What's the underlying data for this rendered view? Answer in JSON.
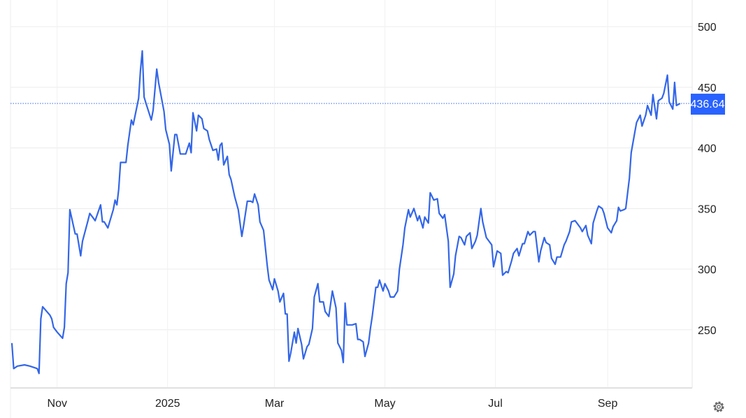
{
  "chart_data": {
    "type": "line",
    "title": "",
    "xlabel": "",
    "ylabel": "",
    "ylim": [
      202,
      522
    ],
    "xlim": [
      "2024-10-07",
      "2025-10-16"
    ],
    "grid": true,
    "y_axis_position": "right",
    "y_ticks": [
      250,
      300,
      350,
      400,
      450,
      500
    ],
    "x_ticks": [
      {
        "date": "2024-11-01",
        "label": "Nov"
      },
      {
        "date": "2025-01-01",
        "label": "2025"
      },
      {
        "date": "2025-03-01",
        "label": "Mar"
      },
      {
        "date": "2025-05-01",
        "label": "May"
      },
      {
        "date": "2025-07-01",
        "label": "Jul"
      },
      {
        "date": "2025-09-01",
        "label": "Sep"
      }
    ],
    "last_price": 436.64,
    "last_price_label": "436.64",
    "colors": {
      "line": "#3366e8",
      "price_label_bg": "#2962ff",
      "grid": "#ececec"
    },
    "series": [
      {
        "points": [
          [
            "2024-10-07",
            239
          ],
          [
            "2024-10-08",
            218
          ],
          [
            "2024-10-10",
            220
          ],
          [
            "2024-10-14",
            221
          ],
          [
            "2024-10-17",
            220
          ],
          [
            "2024-10-21",
            218
          ],
          [
            "2024-10-22",
            214
          ],
          [
            "2024-10-23",
            259
          ],
          [
            "2024-10-24",
            269
          ],
          [
            "2024-10-28",
            262
          ],
          [
            "2024-10-29",
            259
          ],
          [
            "2024-10-30",
            252
          ],
          [
            "2024-11-01",
            248
          ],
          [
            "2024-11-04",
            243
          ],
          [
            "2024-11-05",
            252
          ],
          [
            "2024-11-06",
            288
          ],
          [
            "2024-11-07",
            297
          ],
          [
            "2024-11-08",
            349
          ],
          [
            "2024-11-11",
            329
          ],
          [
            "2024-11-12",
            329
          ],
          [
            "2024-11-14",
            311
          ],
          [
            "2024-11-15",
            323
          ],
          [
            "2024-11-18",
            340
          ],
          [
            "2024-11-19",
            346
          ],
          [
            "2024-11-21",
            342
          ],
          [
            "2024-11-22",
            340
          ],
          [
            "2024-11-25",
            353
          ],
          [
            "2024-11-26",
            339
          ],
          [
            "2024-11-27",
            339
          ],
          [
            "2024-11-29",
            334
          ],
          [
            "2024-12-02",
            349
          ],
          [
            "2024-12-03",
            357
          ],
          [
            "2024-12-04",
            353
          ],
          [
            "2024-12-05",
            366
          ],
          [
            "2024-12-06",
            388
          ],
          [
            "2024-12-09",
            388
          ],
          [
            "2024-12-10",
            402
          ],
          [
            "2024-12-12",
            423
          ],
          [
            "2024-12-13",
            419
          ],
          [
            "2024-12-16",
            441
          ],
          [
            "2024-12-17",
            464
          ],
          [
            "2024-12-18",
            480
          ],
          [
            "2024-12-19",
            442
          ],
          [
            "2024-12-20",
            437
          ],
          [
            "2024-12-23",
            423
          ],
          [
            "2024-12-24",
            431
          ],
          [
            "2024-12-26",
            465
          ],
          [
            "2024-12-27",
            454
          ],
          [
            "2024-12-30",
            430
          ],
          [
            "2024-12-31",
            415
          ],
          [
            "2025-01-02",
            403
          ],
          [
            "2025-01-03",
            381
          ],
          [
            "2025-01-05",
            411
          ],
          [
            "2025-01-06",
            411
          ],
          [
            "2025-01-08",
            395
          ],
          [
            "2025-01-10",
            395
          ],
          [
            "2025-01-11",
            395
          ],
          [
            "2025-01-13",
            404
          ],
          [
            "2025-01-14",
            396
          ],
          [
            "2025-01-15",
            429
          ],
          [
            "2025-01-17",
            414
          ],
          [
            "2025-01-18",
            427
          ],
          [
            "2025-01-20",
            424
          ],
          [
            "2025-01-21",
            416
          ],
          [
            "2025-01-23",
            414
          ],
          [
            "2025-01-24",
            407
          ],
          [
            "2025-01-26",
            398
          ],
          [
            "2025-01-28",
            399
          ],
          [
            "2025-01-29",
            390
          ],
          [
            "2025-01-30",
            402
          ],
          [
            "2025-01-31",
            404
          ],
          [
            "2025-02-01",
            386
          ],
          [
            "2025-02-03",
            393
          ],
          [
            "2025-02-04",
            378
          ],
          [
            "2025-02-05",
            374
          ],
          [
            "2025-02-07",
            360
          ],
          [
            "2025-02-09",
            349
          ],
          [
            "2025-02-11",
            327
          ],
          [
            "2025-02-12",
            336
          ],
          [
            "2025-02-14",
            356
          ],
          [
            "2025-02-16",
            356
          ],
          [
            "2025-02-17",
            355
          ],
          [
            "2025-02-18",
            362
          ],
          [
            "2025-02-20",
            353
          ],
          [
            "2025-02-21",
            339
          ],
          [
            "2025-02-23",
            332
          ],
          [
            "2025-02-25",
            303
          ],
          [
            "2025-02-26",
            291
          ],
          [
            "2025-02-28",
            283
          ],
          [
            "2025-03-01",
            292
          ],
          [
            "2025-03-03",
            282
          ],
          [
            "2025-03-04",
            273
          ],
          [
            "2025-03-06",
            280
          ],
          [
            "2025-03-07",
            263
          ],
          [
            "2025-03-08",
            263
          ],
          [
            "2025-03-09",
            224
          ],
          [
            "2025-03-10",
            231
          ],
          [
            "2025-03-12",
            248
          ],
          [
            "2025-03-13",
            239
          ],
          [
            "2025-03-14",
            251
          ],
          [
            "2025-03-16",
            238
          ],
          [
            "2025-03-17",
            226
          ],
          [
            "2025-03-19",
            236
          ],
          [
            "2025-03-20",
            238
          ],
          [
            "2025-03-22",
            251
          ],
          [
            "2025-03-23",
            277
          ],
          [
            "2025-03-25",
            288
          ],
          [
            "2025-03-26",
            273
          ],
          [
            "2025-03-28",
            273
          ],
          [
            "2025-03-29",
            265
          ],
          [
            "2025-03-31",
            261
          ],
          [
            "2025-04-01",
            271
          ],
          [
            "2025-04-02",
            282
          ],
          [
            "2025-04-04",
            268
          ],
          [
            "2025-04-05",
            239
          ],
          [
            "2025-04-07",
            233
          ],
          [
            "2025-04-08",
            223
          ],
          [
            "2025-04-09",
            272
          ],
          [
            "2025-04-10",
            254
          ],
          [
            "2025-04-12",
            254
          ],
          [
            "2025-04-13",
            254
          ],
          [
            "2025-04-15",
            255
          ],
          [
            "2025-04-16",
            242
          ],
          [
            "2025-04-17",
            242
          ],
          [
            "2025-04-19",
            240
          ],
          [
            "2025-04-20",
            228
          ],
          [
            "2025-04-22",
            239
          ],
          [
            "2025-04-23",
            251
          ],
          [
            "2025-04-24",
            261
          ],
          [
            "2025-04-26",
            285
          ],
          [
            "2025-04-27",
            285
          ],
          [
            "2025-04-28",
            291
          ],
          [
            "2025-04-30",
            282
          ],
          [
            "2025-05-01",
            288
          ],
          [
            "2025-05-03",
            282
          ],
          [
            "2025-05-04",
            277
          ],
          [
            "2025-05-06",
            277
          ],
          [
            "2025-05-08",
            282
          ],
          [
            "2025-05-09",
            300
          ],
          [
            "2025-05-11",
            320
          ],
          [
            "2025-05-12",
            334
          ],
          [
            "2025-05-14",
            349
          ],
          [
            "2025-05-15",
            343
          ],
          [
            "2025-05-17",
            350
          ],
          [
            "2025-05-19",
            340
          ],
          [
            "2025-05-20",
            344
          ],
          [
            "2025-05-22",
            334
          ],
          [
            "2025-05-23",
            343
          ],
          [
            "2025-05-25",
            338
          ],
          [
            "2025-05-26",
            363
          ],
          [
            "2025-05-28",
            357
          ],
          [
            "2025-05-30",
            358
          ],
          [
            "2025-05-31",
            346
          ],
          [
            "2025-06-02",
            342
          ],
          [
            "2025-06-03",
            345
          ],
          [
            "2025-06-05",
            323
          ],
          [
            "2025-06-06",
            285
          ],
          [
            "2025-06-08",
            296
          ],
          [
            "2025-06-09",
            311
          ],
          [
            "2025-06-11",
            327
          ],
          [
            "2025-06-12",
            326
          ],
          [
            "2025-06-14",
            320
          ],
          [
            "2025-06-15",
            327
          ],
          [
            "2025-06-17",
            330
          ],
          [
            "2025-06-18",
            317
          ],
          [
            "2025-06-20",
            323
          ],
          [
            "2025-06-21",
            328
          ],
          [
            "2025-06-23",
            350
          ],
          [
            "2025-06-24",
            339
          ],
          [
            "2025-06-26",
            326
          ],
          [
            "2025-06-27",
            324
          ],
          [
            "2025-06-29",
            320
          ],
          [
            "2025-06-30",
            302
          ],
          [
            "2025-07-02",
            315
          ],
          [
            "2025-07-04",
            313
          ],
          [
            "2025-07-05",
            295
          ],
          [
            "2025-07-07",
            298
          ],
          [
            "2025-07-08",
            297
          ],
          [
            "2025-07-10",
            307
          ],
          [
            "2025-07-11",
            313
          ],
          [
            "2025-07-13",
            317
          ],
          [
            "2025-07-14",
            311
          ],
          [
            "2025-07-16",
            321
          ],
          [
            "2025-07-17",
            321
          ],
          [
            "2025-07-19",
            331
          ],
          [
            "2025-07-20",
            328
          ],
          [
            "2025-07-22",
            331
          ],
          [
            "2025-07-23",
            331
          ],
          [
            "2025-07-25",
            306
          ],
          [
            "2025-07-26",
            315
          ],
          [
            "2025-07-28",
            326
          ],
          [
            "2025-07-29",
            322
          ],
          [
            "2025-07-31",
            320
          ],
          [
            "2025-08-01",
            309
          ],
          [
            "2025-08-03",
            304
          ],
          [
            "2025-08-04",
            310
          ],
          [
            "2025-08-06",
            310
          ],
          [
            "2025-08-08",
            320
          ],
          [
            "2025-08-09",
            323
          ],
          [
            "2025-08-11",
            331
          ],
          [
            "2025-08-12",
            339
          ],
          [
            "2025-08-14",
            340
          ],
          [
            "2025-08-15",
            338
          ],
          [
            "2025-08-17",
            334
          ],
          [
            "2025-08-18",
            331
          ],
          [
            "2025-08-20",
            336
          ],
          [
            "2025-08-21",
            328
          ],
          [
            "2025-08-23",
            321
          ],
          [
            "2025-08-24",
            338
          ],
          [
            "2025-08-26",
            348
          ],
          [
            "2025-08-27",
            352
          ],
          [
            "2025-08-29",
            350
          ],
          [
            "2025-08-30",
            346
          ],
          [
            "2025-09-01",
            334
          ],
          [
            "2025-09-03",
            330
          ],
          [
            "2025-09-04",
            335
          ],
          [
            "2025-09-06",
            340
          ],
          [
            "2025-09-07",
            351
          ],
          [
            "2025-09-08",
            348
          ],
          [
            "2025-09-10",
            349
          ],
          [
            "2025-09-11",
            350
          ],
          [
            "2025-09-13",
            375
          ],
          [
            "2025-09-14",
            396
          ],
          [
            "2025-09-16",
            413
          ],
          [
            "2025-09-17",
            421
          ],
          [
            "2025-09-19",
            427
          ],
          [
            "2025-09-20",
            418
          ],
          [
            "2025-09-22",
            427
          ],
          [
            "2025-09-23",
            435
          ],
          [
            "2025-09-25",
            427
          ],
          [
            "2025-09-26",
            444
          ],
          [
            "2025-09-28",
            424
          ],
          [
            "2025-09-29",
            439
          ],
          [
            "2025-10-01",
            441
          ],
          [
            "2025-10-02",
            445
          ],
          [
            "2025-10-04",
            460
          ],
          [
            "2025-10-05",
            438
          ],
          [
            "2025-10-07",
            432
          ],
          [
            "2025-10-08",
            454
          ],
          [
            "2025-10-09",
            435
          ],
          [
            "2025-10-11",
            436.64
          ]
        ]
      }
    ]
  },
  "settings_icon": "gear-icon"
}
